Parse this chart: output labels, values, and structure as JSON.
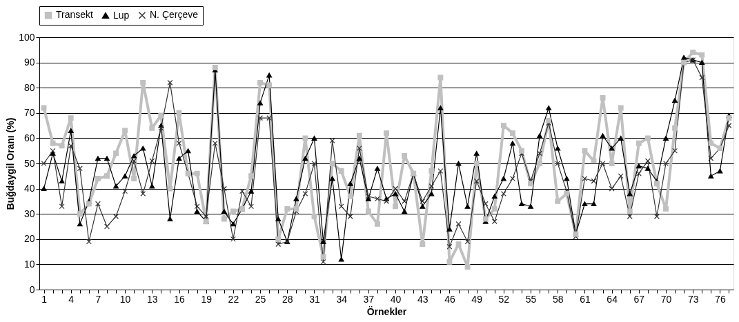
{
  "chart_data": {
    "type": "line",
    "xlabel": "Örnekler",
    "ylabel": "Buğdaygil Oranı (%)",
    "categories": [
      "1",
      null,
      null,
      "4",
      null,
      null,
      "7",
      null,
      null,
      "10",
      null,
      null,
      "13",
      null,
      null,
      "16",
      null,
      null,
      "19",
      null,
      null,
      "22",
      null,
      null,
      "25",
      null,
      null,
      "28",
      null,
      null,
      "31",
      null,
      null,
      "34",
      null,
      null,
      "37",
      null,
      null,
      "40",
      null,
      null,
      "43",
      null,
      null,
      "46",
      null,
      null,
      "49",
      null,
      null,
      "52",
      null,
      null,
      "55",
      null,
      null,
      "58",
      null,
      null,
      "61",
      null,
      null,
      "64",
      null,
      null,
      "67",
      null,
      null,
      "70",
      null,
      null,
      "73",
      null,
      null,
      "76",
      null
    ],
    "ylim": [
      0,
      100
    ],
    "yticks": [
      0,
      10,
      20,
      30,
      40,
      50,
      60,
      70,
      80,
      90,
      100
    ],
    "grid": "y",
    "legend": "top",
    "series": [
      {
        "name": "Transekt",
        "color": "#c0c0c0",
        "marker": "square",
        "values": [
          72,
          58,
          57,
          68,
          30,
          34,
          44,
          45,
          54,
          63,
          44,
          82,
          64,
          69,
          40,
          70,
          46,
          46,
          27,
          88,
          28,
          31,
          32,
          45,
          82,
          81,
          20,
          32,
          32,
          60,
          29,
          13,
          50,
          47,
          37,
          61,
          31,
          26,
          62,
          33,
          53,
          46,
          18,
          47,
          84,
          11,
          18,
          9,
          50,
          28,
          32,
          65,
          62,
          55,
          42,
          50,
          67,
          35,
          38,
          22,
          55,
          51,
          76,
          50,
          72,
          31,
          58,
          60,
          42,
          32,
          64,
          90,
          94,
          93,
          58,
          56,
          68
        ]
      },
      {
        "name": "Lup",
        "color": "#000000",
        "marker": "triangle",
        "values": [
          40,
          54,
          43,
          63,
          26,
          35,
          52,
          52,
          41,
          45,
          53,
          56,
          41,
          65,
          28,
          52,
          55,
          31,
          27,
          87,
          31,
          26,
          32,
          39,
          74,
          85,
          28,
          19,
          36,
          52,
          60,
          19,
          44,
          12,
          42,
          52,
          36,
          48,
          36,
          38,
          31,
          46,
          33,
          38,
          72,
          24,
          50,
          33,
          54,
          27,
          37,
          44,
          58,
          34,
          33,
          61,
          72,
          56,
          44,
          22,
          34,
          34,
          61,
          56,
          60,
          38,
          49,
          48,
          43,
          60,
          75,
          92,
          91,
          90,
          45,
          47,
          69
        ]
      },
      {
        "name": "N. Çerçeve",
        "color": "#333333",
        "marker": "cross",
        "values": [
          50,
          55,
          33,
          57,
          48,
          19,
          34,
          25,
          29,
          39,
          51,
          38,
          51,
          64,
          82,
          58,
          46,
          33,
          29,
          58,
          40,
          20,
          39,
          33,
          68,
          68,
          18,
          19,
          31,
          38,
          50,
          11,
          59,
          33,
          29,
          56,
          37,
          36,
          35,
          40,
          35,
          46,
          35,
          41,
          47,
          17,
          26,
          19,
          43,
          34,
          27,
          38,
          44,
          54,
          43,
          54,
          66,
          50,
          39,
          21,
          44,
          43,
          50,
          40,
          45,
          29,
          46,
          51,
          29,
          50,
          55,
          90,
          91,
          84,
          52,
          56,
          65
        ]
      }
    ]
  }
}
